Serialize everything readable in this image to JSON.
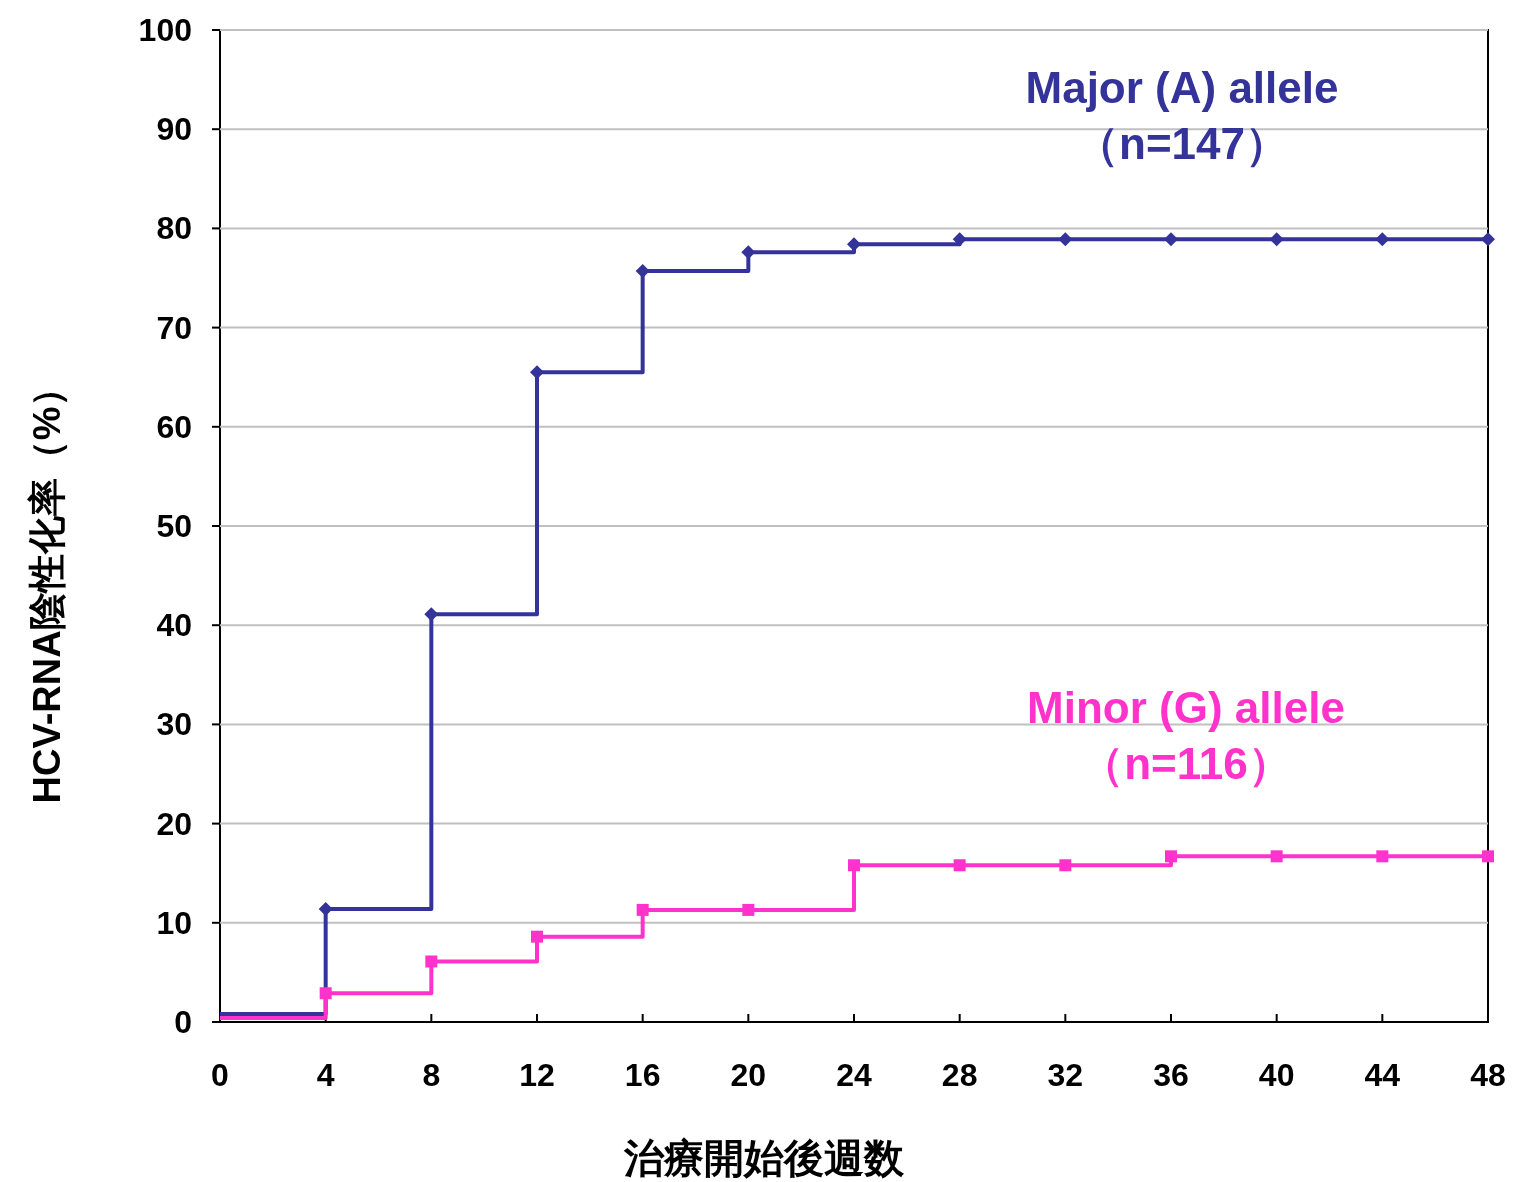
{
  "chart_data": {
    "type": "step",
    "xlabel": "治療開始後週数",
    "ylabel": "HCV-RNA陰性化率（%）",
    "x": [
      0,
      4,
      8,
      12,
      16,
      20,
      24,
      28,
      32,
      36,
      40,
      44,
      48
    ],
    "series": [
      {
        "name": "Major (A) allele\n（n=147）",
        "color": "#333399",
        "marker": "diamond",
        "values": [
          0.8,
          11.4,
          41.1,
          65.5,
          75.7,
          77.6,
          78.4,
          78.9,
          78.9,
          78.9,
          78.9,
          78.9,
          78.9
        ]
      },
      {
        "name": "Minor (G) allele\n（n=116）",
        "color": "#ff33cc",
        "marker": "square",
        "values": [
          0.4,
          2.9,
          6.1,
          8.6,
          11.3,
          11.3,
          15.8,
          15.8,
          15.8,
          16.7,
          16.7,
          16.7,
          16.7
        ]
      }
    ],
    "xlim": [
      0,
      48
    ],
    "xticks": [
      0,
      4,
      8,
      12,
      16,
      20,
      24,
      28,
      32,
      36,
      40,
      44,
      48
    ],
    "ylim": [
      0,
      100
    ],
    "yticks": [
      0,
      10,
      20,
      30,
      40,
      50,
      60,
      70,
      80,
      90,
      100
    ],
    "grid": "y"
  }
}
